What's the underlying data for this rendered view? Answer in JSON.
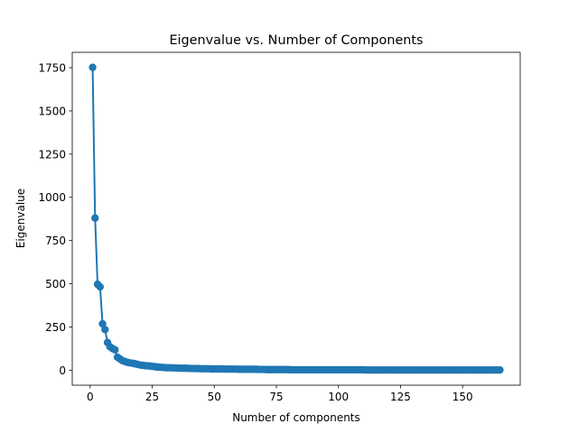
{
  "chart_data": {
    "type": "line",
    "title": "Eigenvalue vs. Number of Components",
    "x_label": "Number of components",
    "y_label": "Eigenvalue",
    "x": [
      1,
      2,
      3,
      4,
      5,
      6,
      7,
      8,
      9,
      10,
      11,
      12,
      13,
      14,
      15,
      16,
      17,
      18,
      19,
      20,
      21,
      22,
      23,
      24,
      25,
      26,
      27,
      28,
      29,
      30,
      31,
      32,
      33,
      34,
      35,
      36,
      37,
      38,
      39,
      40,
      41,
      42,
      43,
      44,
      45,
      46,
      47,
      48,
      49,
      50,
      51,
      52,
      53,
      54,
      55,
      56,
      57,
      58,
      59,
      60,
      61,
      62,
      63,
      64,
      65,
      66,
      67,
      68,
      69,
      70,
      71,
      72,
      73,
      74,
      75,
      76,
      77,
      78,
      79,
      80,
      81,
      82,
      83,
      84,
      85,
      86,
      87,
      88,
      89,
      90,
      91,
      92,
      93,
      94,
      95,
      96,
      97,
      98,
      99,
      100,
      101,
      102,
      103,
      104,
      105,
      106,
      107,
      108,
      109,
      110,
      111,
      112,
      113,
      114,
      115,
      116,
      117,
      118,
      119,
      120,
      121,
      122,
      123,
      124,
      125,
      126,
      127,
      128,
      129,
      130,
      131,
      132,
      133,
      134,
      135,
      136,
      137,
      138,
      139,
      140,
      141,
      142,
      143,
      144,
      145,
      146,
      147,
      148,
      149,
      150,
      151,
      152,
      153,
      154,
      155,
      156,
      157,
      158,
      159,
      160,
      161,
      162,
      163,
      164,
      165
    ],
    "series": [
      {
        "name": "Eigenvalue",
        "color": "#1f77b4",
        "values": [
          1752,
          880,
          497,
          482,
          268,
          235,
          160,
          135,
          125,
          118,
          75,
          65,
          55,
          50,
          45,
          42,
          40,
          37,
          34,
          30,
          28,
          26,
          25,
          24,
          22,
          20,
          18,
          17,
          16,
          15,
          14,
          14,
          13,
          13,
          12,
          12,
          11,
          11,
          11,
          10,
          10,
          9,
          9,
          9,
          8,
          8,
          8,
          8,
          7,
          7,
          7,
          7,
          7,
          6,
          6,
          6,
          6,
          6,
          6,
          5,
          5,
          5,
          5,
          5,
          5,
          5,
          5,
          4,
          4,
          4,
          3,
          3,
          3,
          3,
          3,
          3,
          3,
          3,
          3,
          3,
          2,
          2,
          2,
          2,
          2,
          2,
          2,
          2,
          2,
          2,
          2,
          2,
          2,
          2,
          2,
          2,
          2,
          2,
          2,
          2,
          2,
          2,
          2,
          2,
          2,
          2,
          2,
          2,
          2,
          2,
          1,
          1,
          1,
          1,
          1,
          1,
          1,
          1,
          1,
          1,
          1,
          1,
          1,
          1,
          1,
          1,
          1,
          1,
          1,
          1,
          1,
          1,
          1,
          1,
          1,
          1,
          1,
          1,
          1,
          1,
          1,
          1,
          1,
          1,
          1,
          1,
          1,
          1,
          1,
          1,
          1,
          1,
          1,
          1,
          1,
          1,
          1,
          1,
          1,
          1,
          1,
          1,
          1,
          1,
          1
        ]
      }
    ],
    "xlim": [
      -7.2,
      173.2
    ],
    "ylim": [
      -87,
      1839
    ],
    "xticks": [
      0,
      25,
      50,
      75,
      100,
      125,
      150
    ],
    "yticks": [
      0,
      250,
      500,
      750,
      1000,
      1250,
      1500,
      1750
    ]
  }
}
